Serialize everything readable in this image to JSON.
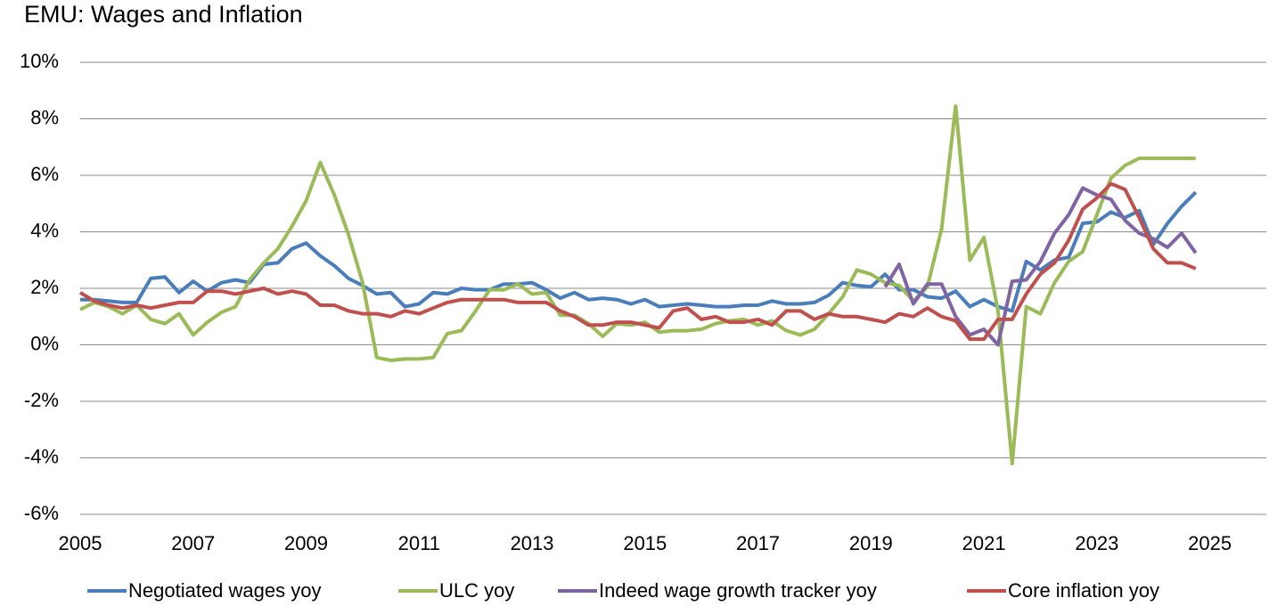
{
  "chart_data": {
    "type": "line",
    "title": "EMU: Wages and Inflation",
    "x": [
      2005,
      2005.25,
      2005.5,
      2005.75,
      2006,
      2006.25,
      2006.5,
      2006.75,
      2007,
      2007.25,
      2007.5,
      2007.75,
      2008,
      2008.25,
      2008.5,
      2008.75,
      2009,
      2009.25,
      2009.5,
      2009.75,
      2010,
      2010.25,
      2010.5,
      2010.75,
      2011,
      2011.25,
      2011.5,
      2011.75,
      2012,
      2012.25,
      2012.5,
      2012.75,
      2013,
      2013.25,
      2013.5,
      2013.75,
      2014,
      2014.25,
      2014.5,
      2014.75,
      2015,
      2015.25,
      2015.5,
      2015.75,
      2016,
      2016.25,
      2016.5,
      2016.75,
      2017,
      2017.25,
      2017.5,
      2017.75,
      2018,
      2018.25,
      2018.5,
      2018.75,
      2019,
      2019.25,
      2019.5,
      2019.75,
      2020,
      2020.25,
      2020.5,
      2020.75,
      2021,
      2021.25,
      2021.5,
      2021.75,
      2022,
      2022.25,
      2022.5,
      2022.75,
      2023,
      2023.25,
      2023.5,
      2023.75,
      2024,
      2024.25,
      2024.5,
      2024.75
    ],
    "series": [
      {
        "name": "Negotiated wages yoy",
        "color": "#4a7ebb",
        "values": [
          1.6,
          1.6,
          1.55,
          1.5,
          1.5,
          2.35,
          2.4,
          1.85,
          2.25,
          1.9,
          2.2,
          2.3,
          2.2,
          2.85,
          2.9,
          3.4,
          3.6,
          3.15,
          2.8,
          2.35,
          2.1,
          1.8,
          1.85,
          1.35,
          1.45,
          1.85,
          1.8,
          2.0,
          1.95,
          1.95,
          2.15,
          2.15,
          2.2,
          1.95,
          1.65,
          1.85,
          1.6,
          1.65,
          1.6,
          1.45,
          1.6,
          1.35,
          1.4,
          1.45,
          1.4,
          1.35,
          1.35,
          1.4,
          1.4,
          1.55,
          1.45,
          1.45,
          1.5,
          1.75,
          2.2,
          2.1,
          2.05,
          2.5,
          1.95,
          1.95,
          1.7,
          1.65,
          1.9,
          1.35,
          1.6,
          1.35,
          1.2,
          2.95,
          2.65,
          3.0,
          3.1,
          4.3,
          4.35,
          4.7,
          4.5,
          4.75,
          3.55,
          4.3,
          4.9,
          5.4
        ]
      },
      {
        "name": "ULC yoy",
        "color": "#9bbb59",
        "values": [
          1.25,
          1.5,
          1.35,
          1.1,
          1.4,
          0.9,
          0.75,
          1.1,
          0.35,
          0.8,
          1.15,
          1.35,
          2.3,
          2.9,
          3.4,
          4.2,
          5.1,
          6.45,
          5.3,
          3.9,
          2.2,
          -0.45,
          -0.55,
          -0.5,
          -0.5,
          -0.45,
          0.4,
          0.5,
          1.2,
          1.95,
          1.95,
          2.15,
          1.8,
          1.85,
          1.05,
          1.05,
          0.75,
          0.3,
          0.75,
          0.7,
          0.8,
          0.45,
          0.5,
          0.5,
          0.55,
          0.75,
          0.85,
          0.9,
          0.7,
          0.85,
          0.5,
          0.35,
          0.55,
          1.1,
          1.7,
          2.65,
          2.5,
          2.2,
          2.1,
          1.55,
          2.05,
          4.1,
          8.45,
          3.0,
          3.8,
          1.2,
          -4.2,
          1.35,
          1.1,
          2.2,
          2.95,
          3.3,
          4.6,
          5.9,
          6.35,
          6.6,
          6.6,
          6.6,
          6.6,
          6.6
        ]
      },
      {
        "name": "Indeed wage growth tracker yoy",
        "color": "#8064a2",
        "values": [
          null,
          null,
          null,
          null,
          null,
          null,
          null,
          null,
          null,
          null,
          null,
          null,
          null,
          null,
          null,
          null,
          null,
          null,
          null,
          null,
          null,
          null,
          null,
          null,
          null,
          null,
          null,
          null,
          null,
          null,
          null,
          null,
          null,
          null,
          null,
          null,
          null,
          null,
          null,
          null,
          null,
          null,
          null,
          null,
          null,
          null,
          null,
          null,
          null,
          null,
          null,
          null,
          null,
          null,
          null,
          null,
          null,
          2.05,
          2.85,
          1.45,
          2.15,
          2.15,
          1.0,
          0.35,
          0.55,
          0.0,
          2.25,
          2.3,
          2.95,
          3.95,
          4.6,
          5.55,
          5.3,
          5.15,
          4.4,
          3.95,
          3.75,
          3.45,
          3.95,
          3.25
        ]
      },
      {
        "name": "Core inflation yoy",
        "color": "#c0504d",
        "values": [
          1.85,
          1.55,
          1.4,
          1.3,
          1.4,
          1.3,
          1.4,
          1.5,
          1.5,
          1.9,
          1.9,
          1.8,
          1.9,
          2.0,
          1.8,
          1.9,
          1.8,
          1.4,
          1.4,
          1.2,
          1.1,
          1.1,
          1.0,
          1.2,
          1.1,
          1.3,
          1.5,
          1.6,
          1.6,
          1.6,
          1.6,
          1.5,
          1.5,
          1.5,
          1.2,
          1.0,
          0.7,
          0.7,
          0.8,
          0.8,
          0.7,
          0.6,
          1.2,
          1.3,
          0.9,
          1.0,
          0.8,
          0.8,
          0.9,
          0.7,
          1.2,
          1.2,
          0.9,
          1.1,
          1.0,
          1.0,
          0.9,
          0.8,
          1.1,
          1.0,
          1.3,
          1.0,
          0.85,
          0.2,
          0.2,
          0.9,
          0.9,
          1.8,
          2.5,
          2.9,
          3.7,
          4.8,
          5.2,
          5.7,
          5.5,
          4.5,
          3.4,
          2.9,
          2.9,
          2.7
        ]
      }
    ],
    "xlim": [
      2005,
      2026
    ],
    "xticks": [
      2005,
      2007,
      2009,
      2011,
      2013,
      2015,
      2017,
      2019,
      2021,
      2023,
      2025
    ],
    "ylim": [
      -6,
      10
    ],
    "yticks": [
      {
        "value": -6,
        "label": "-6%"
      },
      {
        "value": -4,
        "label": "-4%"
      },
      {
        "value": -2,
        "label": "-2%"
      },
      {
        "value": 0,
        "label": "0%"
      },
      {
        "value": 2,
        "label": "2%"
      },
      {
        "value": 4,
        "label": "4%"
      },
      {
        "value": 6,
        "label": "6%"
      },
      {
        "value": 8,
        "label": "8%"
      },
      {
        "value": 10,
        "label": "10%"
      }
    ],
    "grid": true,
    "legend": "bottom"
  }
}
